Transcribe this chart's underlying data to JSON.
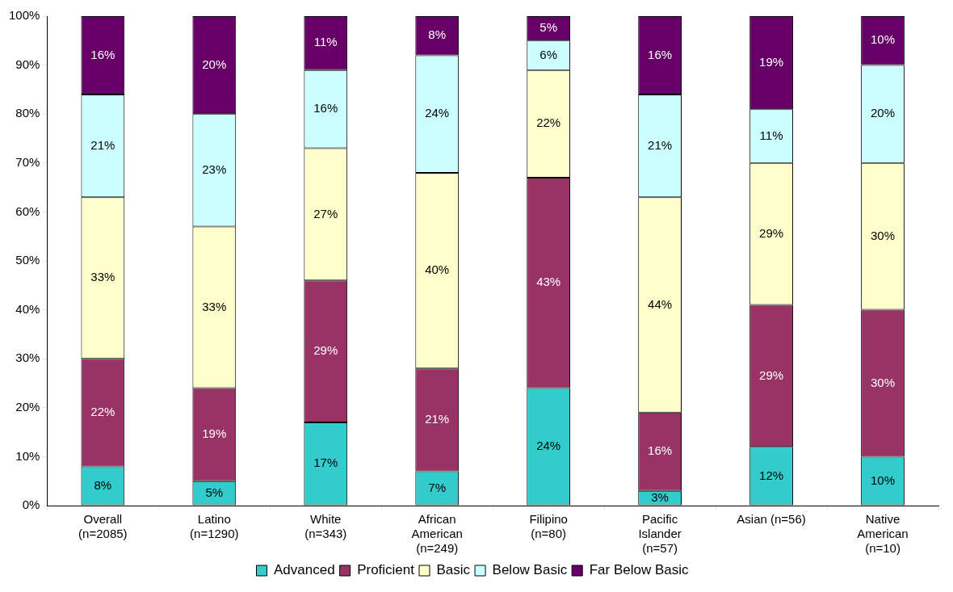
{
  "chart_data": {
    "type": "bar",
    "stacked": true,
    "categories": [
      "Overall\n(n=2085)",
      "Latino\n(n=1290)",
      "White\n(n=343)",
      "African\nAmerican\n(n=249)",
      "Filipino\n(n=80)",
      "Pacific\nIslander\n(n=57)",
      "Asian (n=56)",
      "Native\nAmerican\n(n=10)"
    ],
    "series": [
      {
        "name": "Advanced",
        "color": "#33cccc",
        "values": [
          8,
          5,
          17,
          7,
          24,
          3,
          12,
          10
        ],
        "value_labels": [
          "8%",
          "5%",
          "17%",
          "7%",
          "24%",
          "3%",
          "12%",
          "10%"
        ]
      },
      {
        "name": "Proficient",
        "color": "#993366",
        "values": [
          22,
          19,
          29,
          21,
          43,
          16,
          29,
          30
        ],
        "value_labels": [
          "22%",
          "19%",
          "29%",
          "21%",
          "43%",
          "16%",
          "29%",
          "30%"
        ]
      },
      {
        "name": "Basic",
        "color": "#ffffcc",
        "values": [
          33,
          33,
          27,
          40,
          22,
          44,
          29,
          30
        ],
        "value_labels": [
          "33%",
          "33%",
          "27%",
          "40%",
          "22%",
          "44%",
          "29%",
          "30%"
        ]
      },
      {
        "name": "Below Basic",
        "color": "#ccffff",
        "values": [
          21,
          23,
          16,
          24,
          6,
          21,
          11,
          20
        ],
        "value_labels": [
          "21%",
          "23%",
          "16%",
          "24%",
          "6%",
          "21%",
          "11%",
          "20%"
        ]
      },
      {
        "name": "Far Below Basic",
        "color": "#660066",
        "values": [
          16,
          20,
          11,
          8,
          5,
          16,
          19,
          10
        ],
        "value_labels": [
          "16%",
          "20%",
          "11%",
          "8%",
          "5%",
          "16%",
          "19%",
          "10%"
        ]
      }
    ],
    "ylim": [
      0,
      100
    ],
    "yticks": [
      {
        "value": 0,
        "label": "0%"
      },
      {
        "value": 10,
        "label": "10%"
      },
      {
        "value": 20,
        "label": "20%"
      },
      {
        "value": 30,
        "label": "30%"
      },
      {
        "value": 40,
        "label": "40%"
      },
      {
        "value": 50,
        "label": "50%"
      },
      {
        "value": 60,
        "label": "60%"
      },
      {
        "value": 70,
        "label": "70%"
      },
      {
        "value": 80,
        "label": "80%"
      },
      {
        "value": 90,
        "label": "90%"
      },
      {
        "value": 100,
        "label": "100%"
      }
    ],
    "grid": false,
    "legend": "bottom"
  }
}
